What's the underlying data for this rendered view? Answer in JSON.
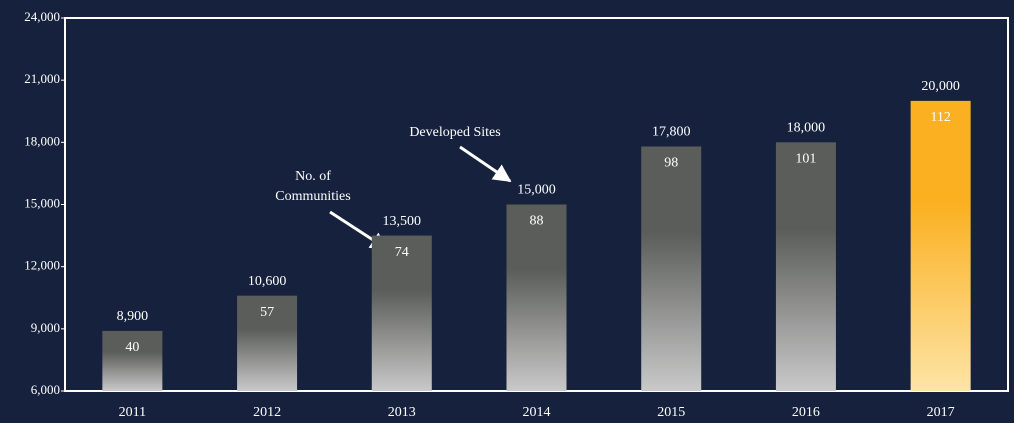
{
  "chart_data": {
    "type": "bar",
    "categories": [
      "2011",
      "2012",
      "2013",
      "2014",
      "2015",
      "2016",
      "2017"
    ],
    "series": [
      {
        "name": "Developed Sites",
        "values": [
          8900,
          10600,
          13500,
          15000,
          17800,
          18000,
          20000
        ],
        "value_labels": [
          "8,900",
          "10,600",
          "13,500",
          "15,000",
          "17,800",
          "18,000",
          "20,000"
        ]
      },
      {
        "name": "No. of Communities",
        "values": [
          40,
          57,
          74,
          88,
          98,
          101,
          112
        ]
      }
    ],
    "colors": [
      "#5b5d5a",
      "#5b5d5a",
      "#5b5d5a",
      "#5b5d5a",
      "#5b5d5a",
      "#5b5d5a",
      "#fbb021"
    ],
    "annotations": [
      {
        "lines": [
          "Developed Sites"
        ]
      },
      {
        "lines": [
          "No. of",
          "Communities"
        ]
      }
    ],
    "ylim": [
      6000,
      24000
    ],
    "yticks": [
      {
        "value": 6000,
        "label": "6,000"
      },
      {
        "value": 9000,
        "label": "9,000"
      },
      {
        "value": 12000,
        "label": "12,000"
      },
      {
        "value": 15000,
        "label": "15,000"
      },
      {
        "value": 18000,
        "label": "18,000"
      },
      {
        "value": 21000,
        "label": "21,000"
      },
      {
        "value": 24000,
        "label": "24,000"
      }
    ]
  }
}
